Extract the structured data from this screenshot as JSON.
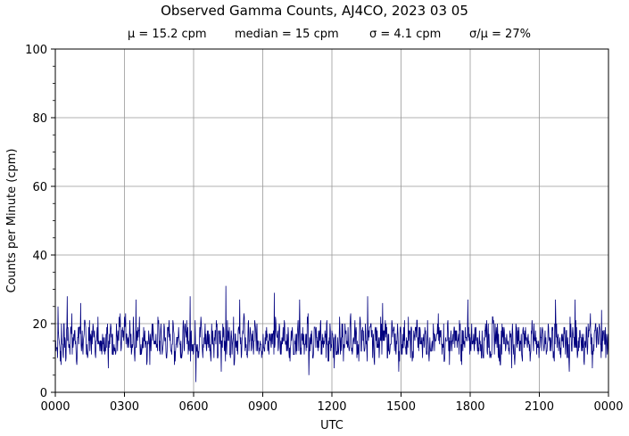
{
  "chart_data": {
    "type": "line",
    "title": "Observed Gamma Counts, AJ4CO, 2023 03 05",
    "subtitle_stats": [
      "μ = 15.2 cpm",
      "median = 15 cpm",
      "σ = 4.1 cpm",
      "σ/μ = 27%"
    ],
    "xlabel": "UTC",
    "ylabel": "Counts per Minute (cpm)",
    "x_ticks": [
      "0000",
      "0300",
      "0600",
      "0900",
      "1200",
      "1500",
      "1800",
      "2100",
      "0000"
    ],
    "y_ticks": [
      "0",
      "20",
      "40",
      "60",
      "80",
      "100"
    ],
    "ylim": [
      0,
      100
    ],
    "xlim_hours": [
      0,
      24
    ],
    "grid": true,
    "line_color": "#00007f",
    "series": [
      {
        "values": [
          15,
          13,
          17,
          12,
          19,
          14,
          16,
          11,
          18,
          15,
          14,
          20,
          13,
          16,
          17,
          12,
          15,
          19,
          14,
          16,
          13,
          18,
          15,
          12,
          17,
          16,
          14,
          19,
          15,
          13,
          16,
          18,
          12,
          15,
          17,
          14,
          16,
          20,
          13,
          15,
          18,
          14,
          16,
          12,
          17,
          15,
          19,
          13,
          16,
          14,
          22,
          15,
          13,
          17,
          16,
          14,
          18,
          12,
          15,
          16,
          19,
          14,
          13,
          17,
          15,
          16,
          12,
          18,
          15,
          14,
          16,
          17,
          13,
          15,
          19,
          14,
          16,
          12,
          17,
          15,
          13,
          16,
          18,
          14,
          15,
          17,
          12,
          16,
          15,
          19,
          14,
          13,
          17,
          16,
          15,
          18,
          14,
          12,
          16,
          15,
          14,
          17,
          15,
          13,
          16,
          19,
          12,
          15,
          17,
          14,
          16,
          15,
          13,
          18,
          14,
          16,
          17,
          12,
          15,
          16,
          14,
          19,
          15,
          13,
          17,
          16,
          14,
          15,
          18,
          12,
          16,
          15,
          17,
          13,
          14,
          16,
          19,
          15,
          12,
          17,
          16,
          14,
          15,
          13,
          18,
          16,
          15,
          14,
          17,
          12,
          16,
          15,
          18,
          13,
          14,
          17,
          16,
          15,
          12,
          19,
          14,
          16,
          15,
          13,
          17,
          18,
          14,
          15,
          16,
          12,
          15,
          17,
          14,
          16,
          13,
          18,
          15,
          14,
          16,
          17,
          12,
          15,
          19,
          14,
          16,
          15,
          13,
          17,
          16,
          14,
          15,
          18,
          12,
          16,
          15,
          14,
          17,
          13,
          16,
          15,
          17,
          14,
          16,
          13,
          15,
          18,
          14,
          16,
          12,
          17,
          15,
          16,
          14,
          19,
          13,
          15,
          17,
          16,
          14,
          12,
          18,
          15,
          16,
          14,
          17,
          13,
          15,
          16,
          18,
          14,
          12,
          17,
          15,
          16,
          14,
          19,
          13,
          15,
          17,
          16,
          14,
          15,
          12,
          18,
          16,
          15,
          14,
          17,
          13,
          16,
          14,
          16,
          17,
          15,
          13,
          18,
          14,
          16,
          12,
          15,
          17,
          19,
          14,
          16,
          15,
          13,
          17,
          16,
          14,
          18,
          12,
          15,
          16,
          17,
          14,
          13,
          19,
          15,
          16,
          14,
          17,
          12,
          15,
          18,
          16,
          14,
          15,
          13,
          17,
          16,
          15,
          14,
          19,
          12,
          16,
          17,
          15,
          14,
          16,
          13,
          15,
          17,
          14,
          16,
          18,
          13,
          15,
          16,
          14,
          12,
          17,
          19,
          15,
          16,
          14,
          13,
          18,
          15,
          17,
          16,
          14,
          12,
          15,
          19,
          16,
          14,
          17,
          13,
          15,
          16,
          18,
          14,
          12,
          17,
          15,
          16,
          14,
          13,
          19,
          15,
          17,
          16,
          14,
          12,
          18,
          15,
          16,
          17,
          14,
          13,
          16,
          14,
          18,
          15,
          17,
          13,
          16,
          14,
          15,
          19,
          12,
          17,
          16,
          14,
          15,
          13,
          18,
          16,
          15,
          17,
          14,
          12,
          19,
          15,
          16,
          14,
          17,
          13,
          15,
          18,
          16,
          14,
          12,
          17,
          15,
          16,
          19,
          14,
          13,
          15,
          17,
          16,
          14,
          18,
          12,
          15,
          16,
          17,
          14,
          15
        ],
        "spikes": [
          [
            0.12,
            25
          ],
          [
            0.52,
            28
          ],
          [
            1.1,
            26
          ],
          [
            1.85,
            22
          ],
          [
            3.5,
            27
          ],
          [
            5.85,
            28
          ],
          [
            7.4,
            31
          ],
          [
            8.0,
            27
          ],
          [
            9.5,
            29
          ],
          [
            10.6,
            27
          ],
          [
            13.55,
            28
          ],
          [
            14.2,
            26
          ],
          [
            17.9,
            27
          ],
          [
            21.7,
            27
          ],
          [
            22.55,
            27
          ],
          [
            23.7,
            24
          ]
        ],
        "dips": [
          [
            0.25,
            8
          ],
          [
            2.3,
            7
          ],
          [
            4.1,
            8
          ],
          [
            6.1,
            3
          ],
          [
            7.2,
            6
          ],
          [
            11.0,
            5
          ],
          [
            12.1,
            7
          ],
          [
            14.9,
            6
          ],
          [
            17.1,
            8
          ],
          [
            19.8,
            7
          ],
          [
            22.3,
            6
          ],
          [
            23.3,
            7
          ]
        ]
      }
    ]
  }
}
